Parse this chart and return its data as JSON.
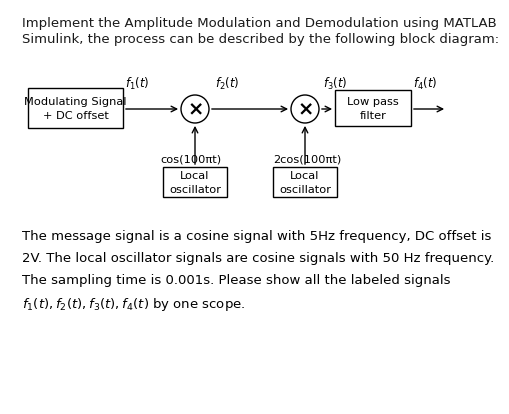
{
  "bg_color": "#ffffff",
  "text_color": "#1a1a1a",
  "line1": "Implement the Amplitude Modulation and Demodulation using MATLAB",
  "line2": "Simulink, the process can be described by the following block diagram:",
  "box1_label": "Modulating Signal\n+ DC offset",
  "box2_label": "Low pass\nfilter",
  "osc1_label": "Local\noscillator",
  "osc2_label": "Local\noscillator",
  "cos1_label": "cos(100πt)",
  "cos2_label": "2cos(100πt)",
  "f1_label": "$f_1(t)$",
  "f2_label": "$f_2(t)$",
  "f3_label": "$f_3(t)$",
  "f4_label": "$f_4(t)$",
  "para1": "The message signal is a cosine signal with 5Hz frequency, DC offset is",
  "para2": "2V. The local oscillator signals are cosine signals with 50 Hz frequency.",
  "para3": "The sampling time is 0.001s. Please show all the labeled signals",
  "para4": "$f_1(t), f_2(t), f_3(t), f_4(t)$ by one scope.",
  "font_size_header": 9.5,
  "font_size_body": 9.5,
  "font_size_diagram": 8.2,
  "font_size_signal": 8.5
}
